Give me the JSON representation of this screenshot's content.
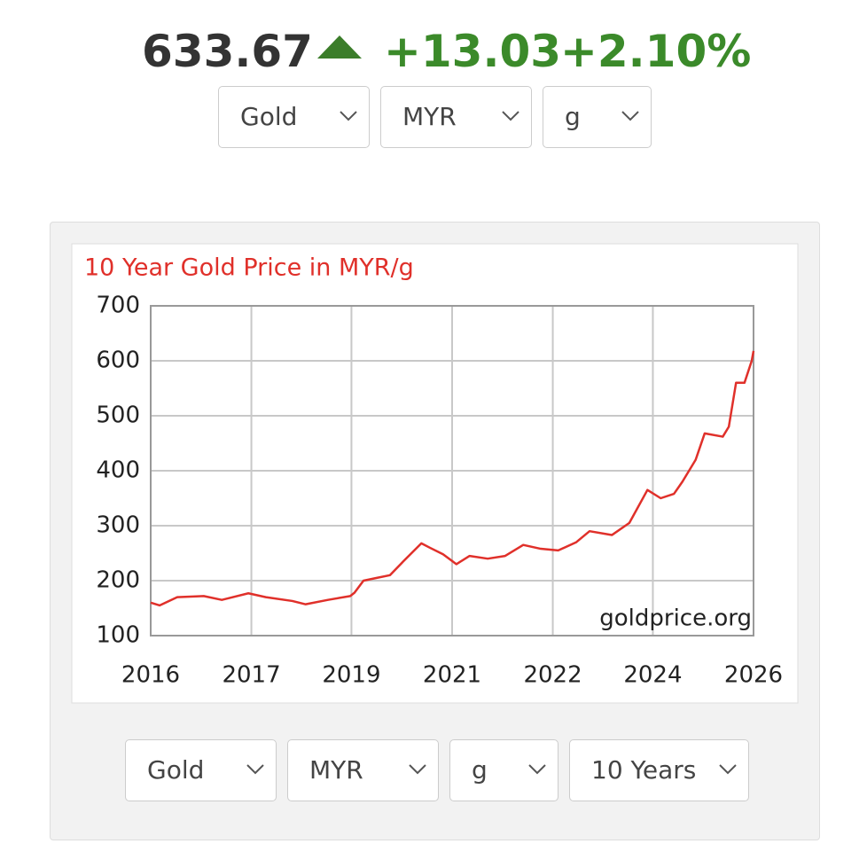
{
  "quote": {
    "price": "633.67",
    "change": "+13.03",
    "change_percent": "+2.10%"
  },
  "top_selects": [
    "Gold",
    "MYR",
    "g"
  ],
  "chart_data": {
    "type": "line",
    "title": "10 Year Gold Price in MYR/g",
    "annotation": "goldprice.org",
    "x": [
      2016.0,
      2016.15,
      2016.44,
      2016.88,
      2017.18,
      2017.62,
      2017.91,
      2018.35,
      2018.57,
      2018.94,
      2019.31,
      2019.38,
      2019.53,
      2019.75,
      2019.97,
      2020.19,
      2020.49,
      2020.63,
      2020.85,
      2021.07,
      2021.29,
      2021.59,
      2021.88,
      2022.18,
      2022.47,
      2022.76,
      2023.06,
      2023.28,
      2023.65,
      2023.94,
      2024.24,
      2024.46,
      2024.68,
      2024.82,
      2025.04,
      2025.19,
      2025.49,
      2025.59,
      2025.71,
      2025.85,
      2025.97,
      2026.0
    ],
    "series": [
      {
        "name": "Gold",
        "color": "#e0302a",
        "values": [
          160,
          155,
          170,
          172,
          165,
          177,
          170,
          163,
          157,
          165,
          172,
          178,
          200,
          205,
          210,
          235,
          268,
          260,
          248,
          230,
          245,
          240,
          245,
          265,
          258,
          255,
          270,
          290,
          283,
          305,
          365,
          350,
          358,
          380,
          420,
          468,
          462,
          480,
          560,
          560,
          600,
          618
        ]
      }
    ],
    "xlim": [
      2016,
      2026
    ],
    "xticks": [
      2016,
      {
        "value": 2017.67,
        "label": "2017"
      },
      {
        "value": 2019.33,
        "label": "2019"
      },
      2021,
      {
        "value": 2022.67,
        "label": "2022"
      },
      {
        "value": 2024.33,
        "label": "2024"
      },
      2026
    ],
    "ylim": [
      100,
      700
    ],
    "yticks": [
      100,
      200,
      300,
      400,
      500,
      600,
      700
    ],
    "grid": true
  },
  "bottom_selects": [
    "Gold",
    "MYR",
    "g",
    "10 Years"
  ]
}
